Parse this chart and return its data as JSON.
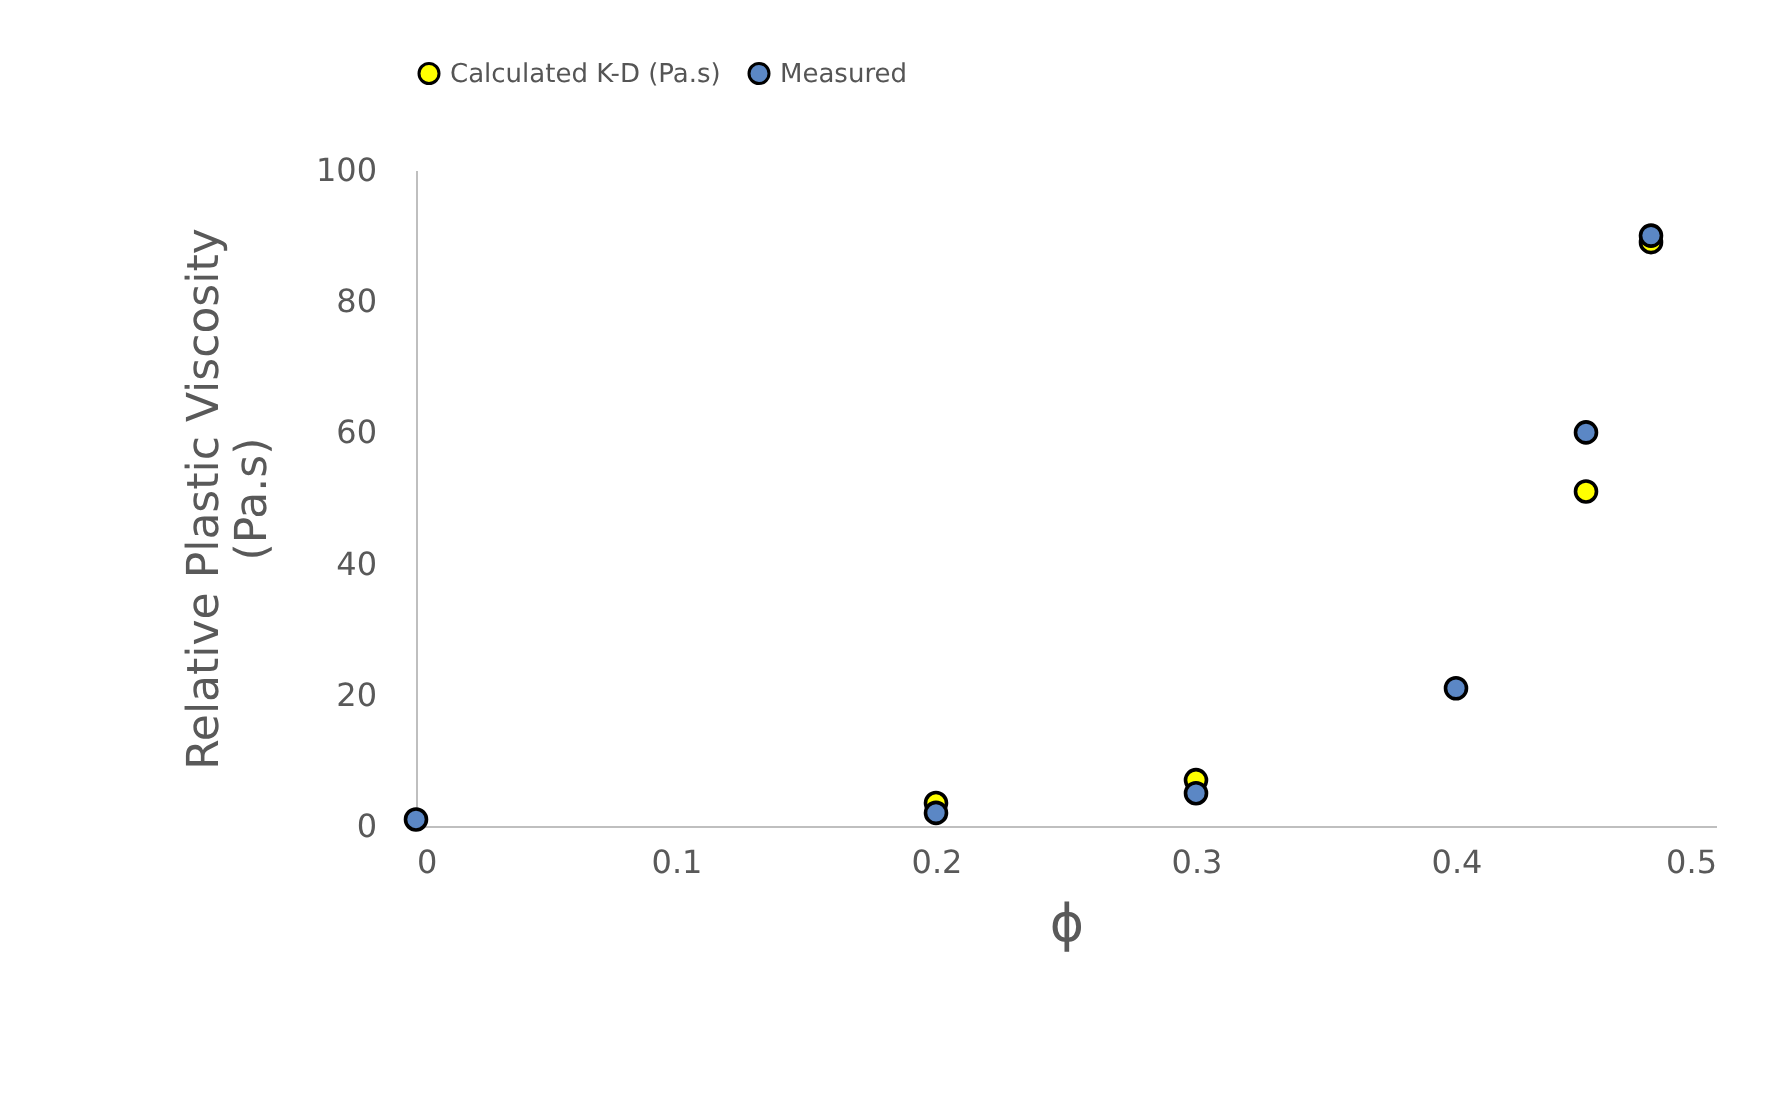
{
  "chart_data": {
    "type": "scatter",
    "xlabel": "ϕ",
    "ylabel": "Relative Plastic Viscosity\n(Pa.s)",
    "xlim": [
      0,
      0.5
    ],
    "xticks": [
      0,
      0.1,
      0.2,
      0.3,
      0.4,
      0.5
    ],
    "ylim": [
      0,
      100
    ],
    "yticks": [
      0,
      20,
      40,
      60,
      80,
      100
    ],
    "grid": false,
    "legend": "top",
    "marker": "circle",
    "series": [
      {
        "name": "Calculated K-D (Pa.s)",
        "color": "#ffff00",
        "x": [
          0.2,
          0.3,
          0.45,
          0.475
        ],
        "values": [
          3.5,
          7,
          51,
          89
        ]
      },
      {
        "name": "Measured",
        "color": "#5b87c5",
        "x": [
          0,
          0.2,
          0.3,
          0.4,
          0.45,
          0.475
        ],
        "values": [
          1,
          2,
          5,
          21,
          60,
          90
        ]
      }
    ]
  }
}
